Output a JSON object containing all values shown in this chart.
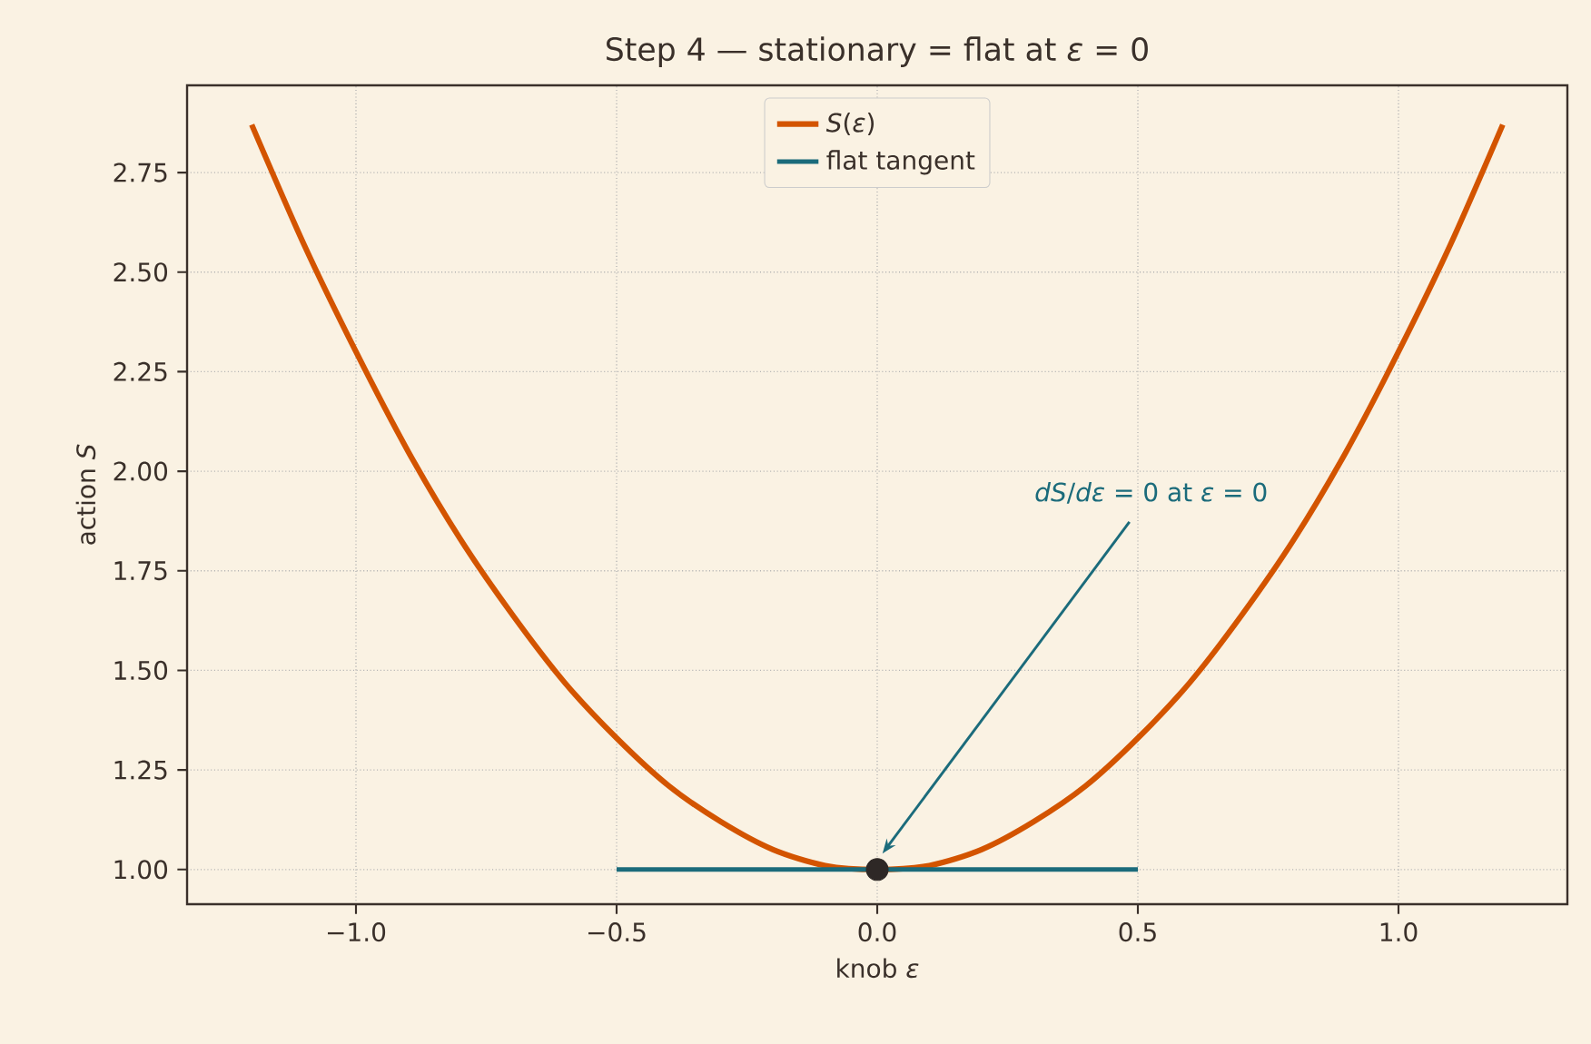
{
  "chart_data": {
    "type": "line",
    "title": "Step 4 — stationary = flat at *ε* = 0",
    "xlabel": "knob  *ε*",
    "ylabel": "action  *S*",
    "series": [
      {
        "name": "*S*(*ε*)",
        "color": "#d35400",
        "x": [
          -1.2,
          -1.1,
          -1.0,
          -0.9,
          -0.8,
          -0.7,
          -0.6,
          -0.5,
          -0.4,
          -0.3,
          -0.2,
          -0.1,
          0.0,
          0.1,
          0.2,
          0.3,
          0.4,
          0.5,
          0.6,
          0.7,
          0.8,
          0.9,
          1.0,
          1.1,
          1.2
        ],
        "values": [
          2.87,
          2.57,
          2.3,
          2.05,
          1.83,
          1.64,
          1.47,
          1.33,
          1.21,
          1.12,
          1.05,
          1.01,
          1.0,
          1.01,
          1.05,
          1.12,
          1.21,
          1.33,
          1.47,
          1.64,
          1.83,
          2.05,
          2.3,
          2.57,
          2.87
        ]
      },
      {
        "name": "flat tangent",
        "color": "#1b6b7b",
        "x": [
          -0.5,
          0.5
        ],
        "values": [
          1.0,
          1.0
        ]
      },
      {
        "type": "scatter",
        "color": "#2e2826",
        "marker": "circle",
        "x": [
          0.0
        ],
        "values": [
          1.0
        ]
      }
    ],
    "annotations": [
      {
        "text": "*dS*/*dε* = 0 at *ε* = 0",
        "x": 0.01,
        "y": 1.04
      }
    ],
    "xlim": [
      -1.324,
      1.324
    ],
    "ylim": [
      0.913,
      2.969
    ],
    "xticks": [
      {
        "value": -1.0,
        "label": "−1.0"
      },
      {
        "value": -0.5,
        "label": "−0.5"
      },
      {
        "value": 0.0,
        "label": "0.0"
      },
      {
        "value": 0.5,
        "label": "0.5"
      },
      {
        "value": 1.0,
        "label": "1.0"
      }
    ],
    "yticks": [
      {
        "value": 1.0,
        "label": "1.00"
      },
      {
        "value": 1.25,
        "label": "1.25"
      },
      {
        "value": 1.5,
        "label": "1.50"
      },
      {
        "value": 1.75,
        "label": "1.75"
      },
      {
        "value": 2.0,
        "label": "2.00"
      },
      {
        "value": 2.25,
        "label": "2.25"
      },
      {
        "value": 2.5,
        "label": "2.50"
      },
      {
        "value": 2.75,
        "label": "2.75"
      }
    ],
    "grid": true,
    "legend": "top"
  }
}
